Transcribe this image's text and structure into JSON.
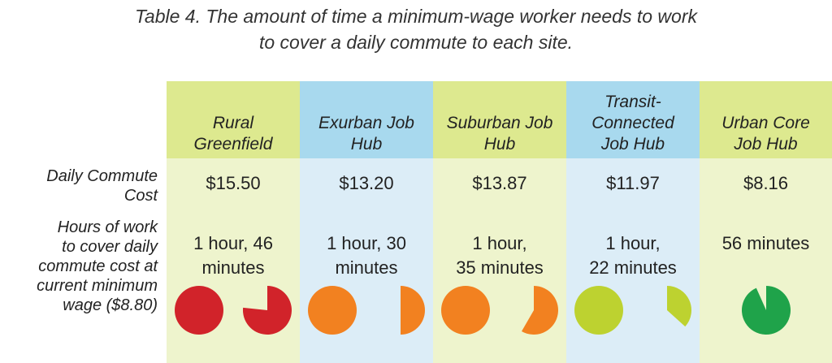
{
  "title": {
    "line1": "Table 4. The amount of time a minimum-wage worker needs to work",
    "line2": "to cover a daily commute to each site."
  },
  "row_labels": {
    "cost": [
      "Daily Commute",
      "Cost"
    ],
    "hours": [
      "Hours of work",
      "to cover daily",
      "commute cost at",
      "current minimum",
      "wage  ($8.80)"
    ]
  },
  "columns": [
    {
      "header": [
        "Rural",
        "Greenfield"
      ],
      "cost": "$15.50",
      "hours": [
        "1 hour, 46",
        "minutes"
      ],
      "minutes": 106,
      "header_bg": "#dde98f",
      "body_bg": "#eef4cd",
      "pie_color": "#d1232a"
    },
    {
      "header": [
        "Exurban Job",
        "Hub"
      ],
      "cost": "$13.20",
      "hours": [
        "1 hour, 30",
        "minutes"
      ],
      "minutes": 90,
      "header_bg": "#a8d9ee",
      "body_bg": "#dcedf7",
      "pie_color": "#f28120"
    },
    {
      "header": [
        "Suburban Job",
        "Hub"
      ],
      "cost": "$13.87",
      "hours": [
        "1 hour,",
        "35 minutes"
      ],
      "minutes": 95,
      "header_bg": "#dde98f",
      "body_bg": "#eef4cd",
      "pie_color": "#f28120"
    },
    {
      "header": [
        "Transit-",
        "Connected",
        "Job Hub"
      ],
      "cost": "$11.97",
      "hours": [
        "1 hour,",
        "22 minutes"
      ],
      "minutes": 82,
      "header_bg": "#a8d9ee",
      "body_bg": "#dcedf7",
      "pie_color": "#bdd230"
    },
    {
      "header": [
        "Urban Core",
        "Job Hub"
      ],
      "cost": "$8.16",
      "hours": [
        "56 minutes"
      ],
      "minutes": 56,
      "header_bg": "#dde98f",
      "body_bg": "#eef4cd",
      "pie_color": "#1fa34a"
    }
  ]
}
